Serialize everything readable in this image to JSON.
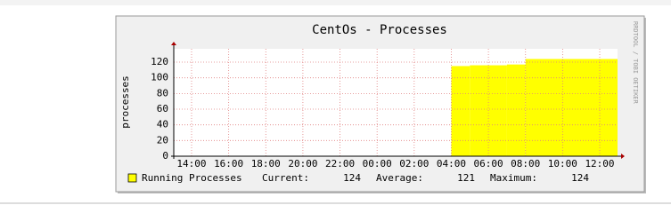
{
  "chart_data": {
    "type": "step-area",
    "title": "CentOs - Processes",
    "y_label": "processes",
    "watermark": "RRDTOOL / TOBI OETIKER",
    "x": [
      28,
      29,
      31,
      32
    ],
    "xlim": [
      13.04,
      36.96
    ],
    "xticks": [
      {
        "value": 14,
        "label": "14:00"
      },
      {
        "value": 16,
        "label": "16:00"
      },
      {
        "value": 18,
        "label": "18:00"
      },
      {
        "value": 20,
        "label": "20:00"
      },
      {
        "value": 22,
        "label": "22:00"
      },
      {
        "value": 24,
        "label": "00:00"
      },
      {
        "value": 26,
        "label": "02:00"
      },
      {
        "value": 28,
        "label": "04:00"
      },
      {
        "value": 30,
        "label": "06:00"
      },
      {
        "value": 32,
        "label": "08:00"
      },
      {
        "value": 34,
        "label": "10:00"
      },
      {
        "value": 36,
        "label": "12:00"
      }
    ],
    "ylim": [
      0,
      137
    ],
    "yticks": [
      0,
      20,
      40,
      60,
      80,
      100,
      120
    ],
    "grid": true,
    "series": [
      {
        "name": "Running Processes",
        "color": "#ffff00",
        "values": [
          115,
          116,
          117,
          124
        ]
      }
    ],
    "stats": [
      {
        "label": "Current:",
        "value": 124
      },
      {
        "label": "Average:",
        "value": 121
      },
      {
        "label": "Maximum:",
        "value": 124
      }
    ]
  }
}
